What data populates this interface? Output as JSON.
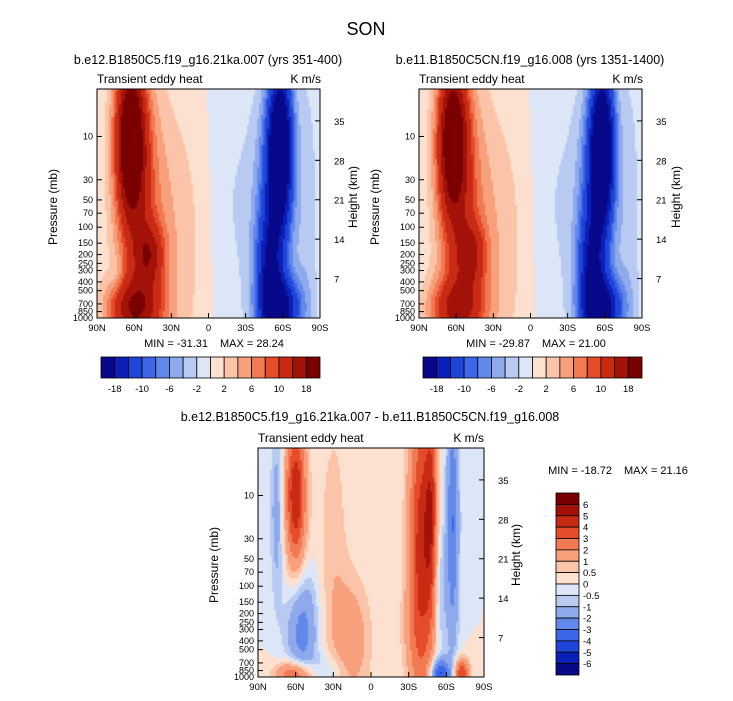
{
  "figure": {
    "title": "SON",
    "ylabel_left": "Pressure (mb)",
    "ylabel_right": "Height (km)",
    "panel_label_left": "Transient eddy heat",
    "panel_label_right": "K m/s"
  },
  "chart_data": [
    {
      "type": "heatmap",
      "title": "b.e12.B1850C5.f19_g16.21ka.007 (yrs 351-400)",
      "subtitle_left": "Transient eddy heat",
      "units": "K m/s",
      "x_ticks": [
        "90N",
        "60N",
        "30N",
        "0",
        "30S",
        "60S",
        "90S"
      ],
      "x_range": [
        90,
        -90
      ],
      "y_ticks": [
        "10",
        "30",
        "50",
        "70",
        "100",
        "150",
        "200",
        "250",
        "300",
        "400",
        "500",
        "700",
        "850",
        "1000"
      ],
      "y_range": [
        3,
        1000
      ],
      "height_ticks": [
        "7",
        "14",
        "21",
        "28",
        "35"
      ],
      "min_label": "MIN = -31.31",
      "max_label": "MAX = 28.24",
      "blobs": [
        {
          "lat": 63,
          "p": 10,
          "w": 12,
          "h": 0.9,
          "v": 22
        },
        {
          "lat": 56,
          "p": 60,
          "w": 20,
          "h": 1.5,
          "v": 8
        },
        {
          "lat": 48,
          "p": 200,
          "w": 12,
          "h": 0.35,
          "v": 10
        },
        {
          "lat": 60,
          "p": 800,
          "w": 22,
          "h": 0.35,
          "v": 14
        },
        {
          "lat": 25,
          "p": 150,
          "w": 25,
          "h": 1.6,
          "v": 3
        },
        {
          "lat": 75,
          "p": 340,
          "w": 6,
          "h": 0.2,
          "v": -2
        },
        {
          "lat": -58,
          "p": 12,
          "w": 10,
          "h": 0.9,
          "v": -24
        },
        {
          "lat": -52,
          "p": 80,
          "w": 15,
          "h": 1.3,
          "v": -10
        },
        {
          "lat": -48,
          "p": 300,
          "w": 10,
          "h": 0.6,
          "v": -10
        },
        {
          "lat": -58,
          "p": 800,
          "w": 16,
          "h": 0.35,
          "v": -18
        },
        {
          "lat": -20,
          "p": 60,
          "w": 20,
          "h": 1.8,
          "v": -2
        },
        {
          "lat": -80,
          "p": 100,
          "w": 10,
          "h": 2.0,
          "v": -3
        }
      ]
    },
    {
      "type": "heatmap",
      "title": "b.e11.B1850C5CN.f19_g16.008 (yrs 1351-1400)",
      "subtitle_left": "Transient eddy heat",
      "units": "K m/s",
      "x_ticks": [
        "90N",
        "60N",
        "30N",
        "0",
        "30S",
        "60S",
        "90S"
      ],
      "x_range": [
        90,
        -90
      ],
      "y_ticks": [
        "10",
        "30",
        "50",
        "70",
        "100",
        "150",
        "200",
        "250",
        "300",
        "400",
        "500",
        "700",
        "850",
        "1000"
      ],
      "y_range": [
        3,
        1000
      ],
      "height_ticks": [
        "7",
        "14",
        "21",
        "28",
        "35"
      ],
      "min_label": "MIN = -29.87",
      "max_label": "MAX = 21.00",
      "blobs": [
        {
          "lat": 63,
          "p": 10,
          "w": 12,
          "h": 0.9,
          "v": 20
        },
        {
          "lat": 56,
          "p": 60,
          "w": 20,
          "h": 1.5,
          "v": 8
        },
        {
          "lat": 48,
          "p": 200,
          "w": 12,
          "h": 0.35,
          "v": 9
        },
        {
          "lat": 60,
          "p": 800,
          "w": 22,
          "h": 0.35,
          "v": 12
        },
        {
          "lat": 25,
          "p": 150,
          "w": 25,
          "h": 1.6,
          "v": 3
        },
        {
          "lat": -58,
          "p": 12,
          "w": 10,
          "h": 0.9,
          "v": -24
        },
        {
          "lat": -52,
          "p": 80,
          "w": 15,
          "h": 1.3,
          "v": -10
        },
        {
          "lat": -48,
          "p": 300,
          "w": 10,
          "h": 0.6,
          "v": -10
        },
        {
          "lat": -58,
          "p": 800,
          "w": 16,
          "h": 0.35,
          "v": -18
        },
        {
          "lat": -20,
          "p": 60,
          "w": 20,
          "h": 1.8,
          "v": -2
        },
        {
          "lat": -80,
          "p": 100,
          "w": 10,
          "h": 2.0,
          "v": -3
        }
      ]
    },
    {
      "type": "heatmap",
      "title": "b.e12.B1850C5.f19_g16.21ka.007 - b.e11.B1850C5CN.f19_g16.008",
      "subtitle_left": "Transient eddy heat",
      "units": "K m/s",
      "x_ticks": [
        "90N",
        "60N",
        "30N",
        "0",
        "30S",
        "60S",
        "90S"
      ],
      "x_range": [
        90,
        -90
      ],
      "y_ticks": [
        "10",
        "30",
        "50",
        "70",
        "100",
        "150",
        "200",
        "250",
        "300",
        "400",
        "500",
        "700",
        "850",
        "1000"
      ],
      "y_range": [
        3,
        1000
      ],
      "height_ticks": [
        "7",
        "14",
        "21",
        "28",
        "35"
      ],
      "min_label": "MIN = -18.72",
      "max_label": "MAX = 21.16",
      "blobs": [
        {
          "lat": 60,
          "p": 10,
          "w": 8,
          "h": 0.8,
          "v": 5
        },
        {
          "lat": 75,
          "p": 15,
          "w": 5,
          "h": 1.0,
          "v": -1.5
        },
        {
          "lat": 30,
          "p": 40,
          "w": 12,
          "h": 1.6,
          "v": 0.8
        },
        {
          "lat": -40,
          "p": 40,
          "w": 10,
          "h": 1.8,
          "v": 4.5
        },
        {
          "lat": -48,
          "p": 15,
          "w": 5,
          "h": 1.2,
          "v": 3
        },
        {
          "lat": -65,
          "p": 20,
          "w": 5,
          "h": 1.4,
          "v": -3
        },
        {
          "lat": -55,
          "p": 100,
          "w": 6,
          "h": 0.8,
          "v": -1.2
        },
        {
          "lat": 55,
          "p": 300,
          "w": 12,
          "h": 0.6,
          "v": -2.5
        },
        {
          "lat": 15,
          "p": 400,
          "w": 15,
          "h": 0.7,
          "v": 1.5
        },
        {
          "lat": 60,
          "p": 950,
          "w": 15,
          "h": 0.15,
          "v": 3.5
        },
        {
          "lat": -55,
          "p": 900,
          "w": 8,
          "h": 0.15,
          "v": -4
        },
        {
          "lat": -72,
          "p": 900,
          "w": 6,
          "h": 0.15,
          "v": 4
        },
        {
          "lat": 35,
          "p": 900,
          "w": 15,
          "h": 0.2,
          "v": -1
        },
        {
          "lat": -30,
          "p": 300,
          "w": 8,
          "h": 0.5,
          "v": 0.5
        }
      ]
    }
  ],
  "colorbar_top": {
    "labels": [
      "-18",
      "-10",
      "-6",
      "-2",
      "2",
      "6",
      "10",
      "18"
    ],
    "levels": [
      -18,
      -14,
      -10,
      -8,
      -6,
      -4,
      -2,
      0,
      2,
      4,
      6,
      8,
      10,
      14,
      18
    ],
    "colors": [
      "#08088a",
      "#0a20b8",
      "#1e44d8",
      "#3d66e8",
      "#6289ea",
      "#8eaaec",
      "#b8caf2",
      "#dde6f6",
      "#fce0d0",
      "#fbc4a8",
      "#f8a07c",
      "#f27a52",
      "#e44c2a",
      "#c92a14",
      "#a21208",
      "#7a0000"
    ]
  },
  "colorbar_diff": {
    "labels": [
      "6",
      "5",
      "4",
      "3",
      "2",
      "1",
      "0.5",
      "0",
      "-0.5",
      "-1",
      "-2",
      "-3",
      "-4",
      "-5",
      "-6"
    ],
    "levels": [
      -6,
      -5,
      -4,
      -3,
      -2,
      -1,
      -0.5,
      0,
      0.5,
      1,
      2,
      3,
      4,
      5,
      6
    ],
    "colors": [
      "#08088a",
      "#0a20b8",
      "#1e44d8",
      "#3d66e8",
      "#6289ea",
      "#8eaaec",
      "#b8caf2",
      "#dde6f6",
      "#fce0d0",
      "#fbc4a8",
      "#f8a07c",
      "#f27a52",
      "#e44c2a",
      "#c92a14",
      "#a21208",
      "#7a0000"
    ]
  }
}
